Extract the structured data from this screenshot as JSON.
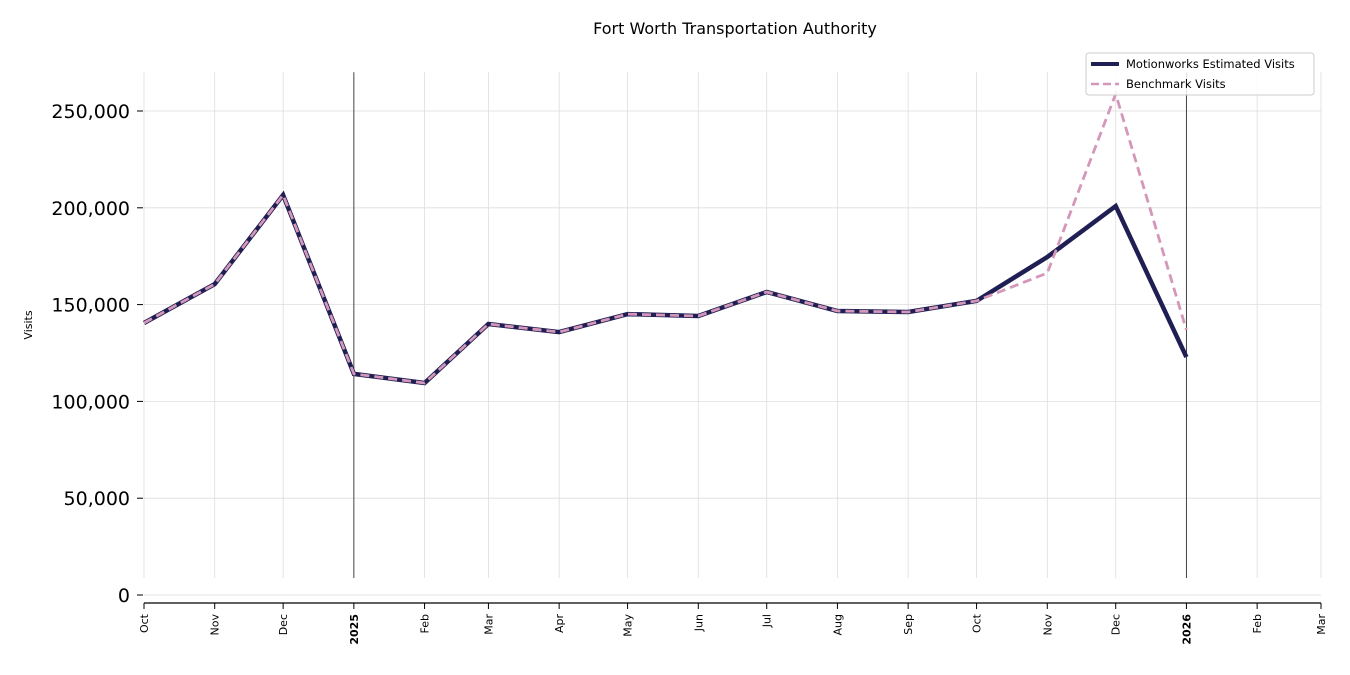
{
  "chart_data": {
    "type": "line",
    "title": "Fort Worth Transportation Authority",
    "xlabel": "",
    "ylabel": "Visits",
    "ylim": [
      -4000,
      270000
    ],
    "grid": true,
    "legend_position": "top-right",
    "x": [
      "2024-10",
      "2024-11",
      "2024-12",
      "2025-01",
      "2025-02",
      "2025-03",
      "2025-04",
      "2025-05",
      "2025-06",
      "2025-07",
      "2025-08",
      "2025-09",
      "2025-10",
      "2025-11",
      "2025-12",
      "2026-01"
    ],
    "series": [
      {
        "name": "Motionworks Estimated Visits",
        "color": "#1f1f54",
        "style": "solid",
        "values": [
          140500,
          160600,
          206600,
          114200,
          109500,
          140000,
          135800,
          145100,
          144100,
          156500,
          146700,
          146200,
          151900,
          174600,
          200900,
          122900
        ]
      },
      {
        "name": "Benchmark Visits",
        "color": "#d597b9",
        "style": "dashed",
        "values": [
          140500,
          160600,
          206600,
          114200,
          109500,
          140000,
          135800,
          145100,
          144100,
          156500,
          146700,
          146200,
          151900,
          166300,
          258800,
          136900
        ]
      }
    ],
    "y_ticks": [
      0,
      50000,
      100000,
      150000,
      200000,
      250000
    ],
    "y_tick_labels": [
      "0",
      "50,000",
      "100,000",
      "150,000",
      "200,000",
      "250,000"
    ],
    "x_ticks": [
      "2024-10",
      "2024-11",
      "2024-12",
      "2025-01",
      "2025-02",
      "2025-03",
      "2025-04",
      "2025-05",
      "2025-06",
      "2025-07",
      "2025-08",
      "2025-09",
      "2025-10",
      "2025-11",
      "2025-12",
      "2026-01",
      "2026-02",
      "2026-03"
    ],
    "x_tick_labels": [
      "Oct",
      "Nov",
      "Dec",
      "2025",
      "Feb",
      "Mar",
      "Apr",
      "May",
      "Jun",
      "Jul",
      "Aug",
      "Sep",
      "Oct",
      "Nov",
      "Dec",
      "2026",
      "Feb",
      "Mar"
    ],
    "x_tick_bold": [
      false,
      false,
      false,
      true,
      false,
      false,
      false,
      false,
      false,
      false,
      false,
      false,
      false,
      false,
      false,
      true,
      false,
      false
    ],
    "year_markers": [
      "2025-01",
      "2026-01"
    ]
  }
}
